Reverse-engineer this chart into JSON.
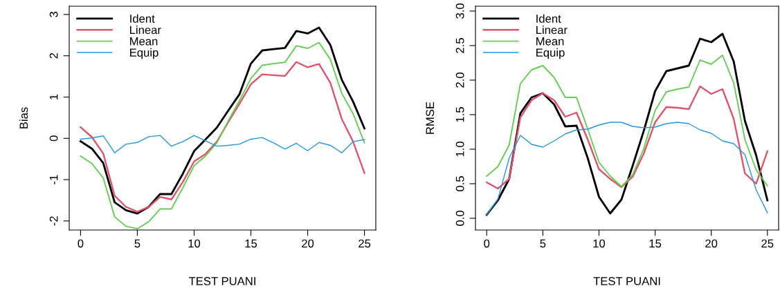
{
  "chart_data": [
    {
      "type": "line",
      "xlabel": "TEST PUANI",
      "ylabel": "Bias",
      "x": [
        0,
        1,
        2,
        3,
        4,
        5,
        6,
        7,
        8,
        9,
        10,
        11,
        12,
        13,
        14,
        15,
        16,
        17,
        18,
        19,
        20,
        21,
        22,
        23,
        24,
        25
      ],
      "xlim": [
        -1,
        26
      ],
      "xticks": [
        0,
        5,
        10,
        15,
        20,
        25
      ],
      "ylim": [
        -2.22,
        3.2
      ],
      "yticks": [
        -2,
        -1,
        0,
        1,
        2,
        3
      ],
      "grid": false,
      "legend": "top left",
      "series": [
        {
          "name": "Ident",
          "color": "#000000",
          "values": [
            -0.07,
            -0.25,
            -0.6,
            -1.55,
            -1.74,
            -1.82,
            -1.66,
            -1.35,
            -1.35,
            -0.86,
            -0.31,
            -0.03,
            0.26,
            0.67,
            1.07,
            1.81,
            2.13,
            2.16,
            2.19,
            2.6,
            2.54,
            2.68,
            2.26,
            1.42,
            0.89,
            0.24
          ]
        },
        {
          "name": "Linear",
          "color": "#df536b",
          "values": [
            0.27,
            0.03,
            -0.37,
            -1.39,
            -1.66,
            -1.78,
            -1.66,
            -1.42,
            -1.48,
            -1.06,
            -0.56,
            -0.38,
            -0.08,
            0.39,
            0.84,
            1.31,
            1.55,
            1.53,
            1.51,
            1.85,
            1.72,
            1.8,
            1.34,
            0.47,
            -0.08,
            -0.84
          ]
        },
        {
          "name": "Mean",
          "color": "#61d04f",
          "values": [
            -0.43,
            -0.61,
            -0.96,
            -1.9,
            -2.13,
            -2.19,
            -2.02,
            -1.71,
            -1.71,
            -1.2,
            -0.66,
            -0.43,
            -0.11,
            0.42,
            0.92,
            1.45,
            1.77,
            1.81,
            1.84,
            2.24,
            2.18,
            2.32,
            1.91,
            1.09,
            0.6,
            -0.11
          ]
        },
        {
          "name": "Equip",
          "color": "#2297e6",
          "values": [
            -0.02,
            0.01,
            0.06,
            -0.35,
            -0.14,
            -0.1,
            0.04,
            0.07,
            -0.19,
            -0.08,
            0.07,
            -0.06,
            -0.19,
            -0.17,
            -0.14,
            -0.02,
            0.02,
            -0.11,
            -0.26,
            -0.12,
            -0.3,
            -0.1,
            -0.17,
            -0.35,
            -0.08,
            -0.03
          ]
        }
      ]
    },
    {
      "type": "line",
      "xlabel": "TEST PUANI",
      "ylabel": "RMSE",
      "x": [
        0,
        1,
        2,
        3,
        4,
        5,
        6,
        7,
        8,
        9,
        10,
        11,
        12,
        13,
        14,
        15,
        16,
        17,
        18,
        19,
        20,
        21,
        22,
        23,
        24,
        25
      ],
      "xlim": [
        -1,
        26
      ],
      "xticks": [
        0,
        5,
        10,
        15,
        20,
        25
      ],
      "ylim": [
        -0.17,
        3.07
      ],
      "yticks": [
        {
          "value": 0,
          "label": "0.0"
        },
        {
          "value": 0.5,
          "label": "0.5"
        },
        {
          "value": 1,
          "label": "1.0"
        },
        {
          "value": 1.5,
          "label": "1.5"
        },
        {
          "value": 2,
          "label": "2.0"
        },
        {
          "value": 2.5,
          "label": "2.5"
        },
        {
          "value": 3,
          "label": "3.0"
        }
      ],
      "grid": false,
      "legend": "top left",
      "series": [
        {
          "name": "Ident",
          "color": "#000000",
          "values": [
            0.05,
            0.26,
            0.57,
            1.52,
            1.75,
            1.81,
            1.65,
            1.33,
            1.34,
            0.87,
            0.31,
            0.07,
            0.27,
            0.76,
            1.27,
            1.84,
            2.13,
            2.17,
            2.21,
            2.6,
            2.55,
            2.67,
            2.27,
            1.41,
            0.91,
            0.26
          ]
        },
        {
          "name": "Linear",
          "color": "#df536b",
          "values": [
            0.52,
            0.43,
            0.57,
            1.46,
            1.71,
            1.81,
            1.71,
            1.47,
            1.53,
            1.14,
            0.71,
            0.57,
            0.45,
            0.6,
            0.94,
            1.39,
            1.61,
            1.6,
            1.58,
            1.91,
            1.8,
            1.87,
            1.44,
            0.65,
            0.5,
            0.97
          ]
        },
        {
          "name": "Mean",
          "color": "#61d04f",
          "values": [
            0.61,
            0.75,
            1.06,
            1.95,
            2.15,
            2.21,
            2.04,
            1.75,
            1.75,
            1.29,
            0.81,
            0.61,
            0.46,
            0.63,
            1.01,
            1.56,
            1.83,
            1.87,
            1.9,
            2.29,
            2.23,
            2.36,
            1.96,
            1.14,
            0.7,
            0.47
          ]
        },
        {
          "name": "Equip",
          "color": "#2297e6",
          "values": [
            0.05,
            0.28,
            0.87,
            1.2,
            1.07,
            1.03,
            1.12,
            1.22,
            1.28,
            1.29,
            1.35,
            1.39,
            1.39,
            1.33,
            1.31,
            1.32,
            1.37,
            1.39,
            1.37,
            1.28,
            1.23,
            1.12,
            1.08,
            0.92,
            0.41,
            0.08
          ]
        }
      ]
    }
  ]
}
